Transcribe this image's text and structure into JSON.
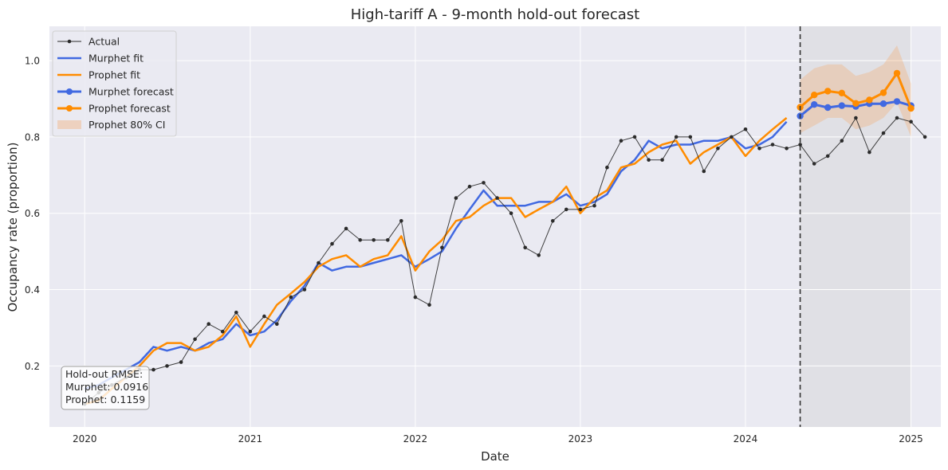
{
  "chart_data": {
    "type": "line",
    "title": "High-tariff A - 9-month hold-out forecast",
    "xlabel": "Date",
    "ylabel": "Occupancy rate (proportion)",
    "xlim": [
      "2019-10-15",
      "2025-03-08"
    ],
    "ylim": [
      0.04,
      1.09
    ],
    "x_ticks": [
      "2020",
      "2021",
      "2022",
      "2023",
      "2024",
      "2025"
    ],
    "y_ticks": [
      "0.2",
      "0.4",
      "0.6",
      "0.8",
      "1.0"
    ],
    "grid": true,
    "legend_position": "top-left",
    "holdout_start": "2024-05-01",
    "holdout_end": "2025-01-01",
    "series": [
      {
        "name": "Actual",
        "color": "#2b2b2b",
        "start": "2020-01",
        "values": [
          0.1,
          0.13,
          0.15,
          0.17,
          0.19,
          0.19,
          0.2,
          0.21,
          0.27,
          0.31,
          0.29,
          0.34,
          0.29,
          0.33,
          0.31,
          0.38,
          0.4,
          0.47,
          0.52,
          0.56,
          0.53,
          0.53,
          0.53,
          0.58,
          0.38,
          0.36,
          0.51,
          0.64,
          0.67,
          0.68,
          0.64,
          0.6,
          0.51,
          0.49,
          0.58,
          0.61,
          0.61,
          0.62,
          0.72,
          0.79,
          0.8,
          0.74,
          0.74,
          0.8,
          0.8,
          0.71,
          0.77,
          0.8,
          0.82,
          0.77,
          0.78,
          0.77,
          0.78,
          0.73,
          0.75,
          0.79,
          0.85,
          0.76,
          0.81,
          0.85,
          0.84,
          0.8
        ]
      },
      {
        "name": "Murphet fit",
        "color": "#4169e1",
        "start": "2020-01",
        "values": [
          0.14,
          0.15,
          0.17,
          0.19,
          0.21,
          0.25,
          0.24,
          0.25,
          0.24,
          0.26,
          0.27,
          0.31,
          0.28,
          0.29,
          0.32,
          0.37,
          0.41,
          0.47,
          0.45,
          0.46,
          0.46,
          0.47,
          0.48,
          0.49,
          0.46,
          0.48,
          0.5,
          0.56,
          0.61,
          0.66,
          0.62,
          0.62,
          0.62,
          0.63,
          0.63,
          0.65,
          0.62,
          0.63,
          0.65,
          0.71,
          0.74,
          0.79,
          0.77,
          0.78,
          0.78,
          0.79,
          0.79,
          0.8,
          0.77,
          0.78,
          0.8,
          0.84
        ]
      },
      {
        "name": "Prophet fit",
        "color": "#ff8c00",
        "start": "2020-01",
        "values": [
          0.1,
          0.11,
          0.14,
          0.17,
          0.2,
          0.24,
          0.26,
          0.26,
          0.24,
          0.25,
          0.28,
          0.33,
          0.25,
          0.31,
          0.36,
          0.39,
          0.42,
          0.46,
          0.48,
          0.49,
          0.46,
          0.48,
          0.49,
          0.54,
          0.45,
          0.5,
          0.53,
          0.58,
          0.59,
          0.62,
          0.64,
          0.64,
          0.59,
          0.61,
          0.63,
          0.67,
          0.6,
          0.64,
          0.66,
          0.72,
          0.73,
          0.76,
          0.78,
          0.79,
          0.73,
          0.76,
          0.78,
          0.8,
          0.75,
          0.79,
          0.82,
          0.85
        ]
      },
      {
        "name": "Murphet forecast",
        "color": "#4169e1",
        "start": "2024-05",
        "values": [
          0.855,
          0.885,
          0.877,
          0.882,
          0.88,
          0.887,
          0.887,
          0.893,
          0.882
        ]
      },
      {
        "name": "Prophet forecast",
        "color": "#ff8c00",
        "start": "2024-05",
        "values": [
          0.878,
          0.91,
          0.92,
          0.915,
          0.888,
          0.897,
          0.916,
          0.967,
          0.875
        ]
      }
    ],
    "ci": {
      "name": "Prophet 80% CI",
      "color": "#f4a460",
      "start": "2024-05",
      "lower": [
        0.81,
        0.83,
        0.85,
        0.85,
        0.82,
        0.83,
        0.85,
        0.89,
        0.8
      ],
      "upper": [
        0.95,
        0.98,
        0.99,
        0.99,
        0.96,
        0.97,
        0.99,
        1.04,
        0.94
      ]
    },
    "rmse": {
      "title": "Hold-out RMSE:",
      "murphet": "Murphet: 0.0916",
      "prophet": "Prophet: 0.1159"
    }
  }
}
